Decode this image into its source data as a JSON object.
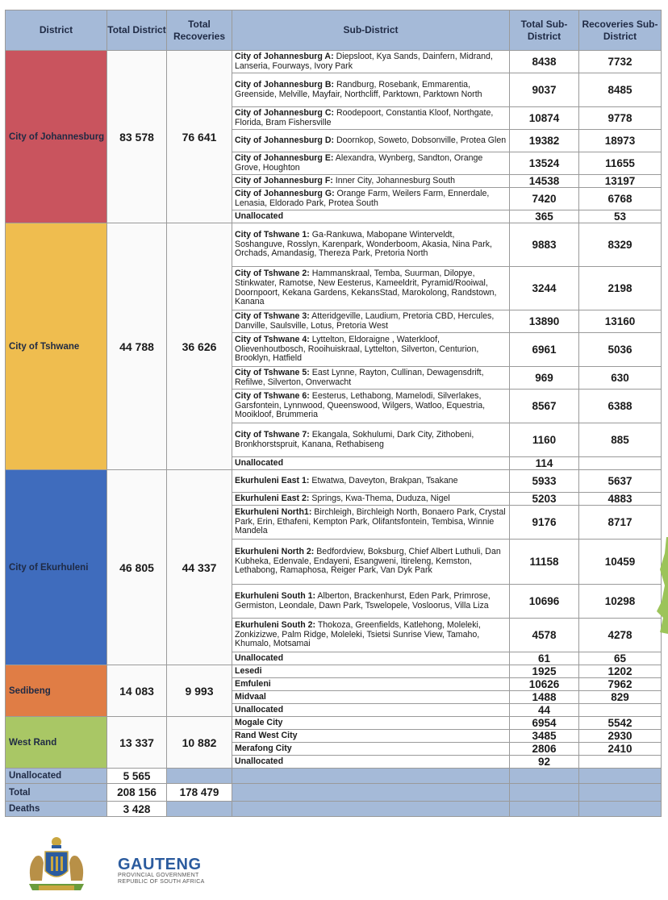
{
  "headers": {
    "district": "District",
    "total_district": "Total District",
    "total_recoveries": "Total Recoveries",
    "sub_district": "Sub-District",
    "total_sub": "Total Sub-District",
    "recoveries_sub": "Recoveries Sub-District"
  },
  "districts": [
    {
      "name": "City of Johannesburg",
      "color": "#c9545e",
      "total": "83 578",
      "recoveries": "76 641",
      "subs": [
        {
          "bold": "City of Johannesburg A:",
          "areas": " Diepsloot, Kya Sands, Dainfern, Midrand, Lanseria, Fourways, Ivory Park",
          "total": "8438",
          "rec": "7732",
          "h": 28
        },
        {
          "bold": "City of Johannesburg B:",
          "areas": " Randburg, Rosebank, Emmarentia, Greenside, Melville, Mayfair, Northcliff, Parktown, Parktown North",
          "total": "9037",
          "rec": "8485",
          "h": 42
        },
        {
          "bold": "City of Johannesburg C:",
          "areas": " Roodepoort, Constantia Kloof, Northgate, Florida, Bram Fishersville",
          "total": "10874",
          "rec": "9778",
          "h": 28
        },
        {
          "bold": "City of Johannesburg D:",
          "areas": " Doornkop, Soweto, Dobsonville, Protea Glen",
          "total": "19382",
          "rec": "18973",
          "h": 28
        },
        {
          "bold": "City of Johannesburg E:",
          "areas": " Alexandra, Wynberg, Sandton, Orange Grove, Houghton",
          "total": "13524",
          "rec": "11655",
          "h": 28
        },
        {
          "bold": "City of Johannesburg F:",
          "areas": " Inner City, Johannesburg South",
          "total": "14538",
          "rec": "13197",
          "h": 16
        },
        {
          "bold": "City of Johannesburg G:",
          "areas": " Orange Farm, Weilers Farm, Ennerdale, Lenasia, Eldorado Park, Protea South",
          "total": "7420",
          "rec": "6768",
          "h": 28
        },
        {
          "bold": "Unallocated",
          "areas": "",
          "total": "365",
          "rec": "53",
          "h": 16
        }
      ]
    },
    {
      "name": "City of Tshwane",
      "color": "#efbd4f",
      "total": "44 788",
      "recoveries": "36 626",
      "subs": [
        {
          "bold": "City of Tshwane 1:",
          "areas": " Ga-Rankuwa, Mabopane Winterveldt, Soshanguve, Rosslyn, Karenpark, Wonderboom, Akasia, Nina Park, Orchads, Amandasig, Thereza Park, Pretoria North",
          "total": "9883",
          "rec": "8329",
          "h": 54
        },
        {
          "bold": "City of Tshwane 2:",
          "areas": " Hammanskraal, Temba, Suurman, Dilopye, Stinkwater, Ramotse, New Eesterus, Kameeldrit, Pyramid/Rooiwal, Doornpoort, Kekana Gardens, KekansStad, Marokolong, Randstown, Kanana",
          "total": "3244",
          "rec": "2198",
          "h": 54
        },
        {
          "bold": "City of Tshwane 3:",
          "areas": " Atteridgeville, Laudium, Pretoria CBD, Hercules, Danville, Saulsville, Lotus, Pretoria West",
          "total": "13890",
          "rec": "13160",
          "h": 28
        },
        {
          "bold": "City of Tshwane 4:",
          "areas": " Lyttelton, Eldoraigne , Waterkloof, Olievenhoutbosch, Rooihuiskraal, Lyttelton, Silverton, Centurion, Brooklyn, Hatfield",
          "total": "6961",
          "rec": "5036",
          "h": 42
        },
        {
          "bold": "City of Tshwane 5:",
          "areas": " East Lynne, Rayton, Cullinan, Dewagensdrift, Refilwe, Silverton, Onverwacht",
          "total": "969",
          "rec": "630",
          "h": 28
        },
        {
          "bold": "City of Tshwane 6:",
          "areas": " Eesterus, Lethabong, Mamelodi, Silverlakes, Garsfontein, Lynnwood, Queenswood, Wilgers, Watloo, Equestria, Mooikloof, Brummeria",
          "total": "8567",
          "rec": "6388",
          "h": 42
        },
        {
          "bold": "City of Tshwane 7:",
          "areas": " Ekangala, Sokhulumi, Dark City, Zithobeni, Bronkhorstspruit, Kanana, Rethabiseng",
          "total": "1160",
          "rec": "885",
          "h": 42
        },
        {
          "bold": "Unallocated",
          "areas": "",
          "total": "114",
          "rec": "",
          "h": 16
        }
      ]
    },
    {
      "name": "City of Ekurhuleni",
      "color": "#3f6cbd",
      "total": "46 805",
      "recoveries": "44 337",
      "subs": [
        {
          "bold": "Ekurhuleni East 1:",
          "areas": " Etwatwa, Daveyton, Brakpan, Tsakane",
          "total": "5933",
          "rec": "5637",
          "h": 28
        },
        {
          "bold": "Ekurhuleni East 2:",
          "areas": " Springs, Kwa-Thema, Duduza, Nigel",
          "total": "5203",
          "rec": "4883",
          "h": 16
        },
        {
          "bold": "Ekurhuleni North1:",
          "areas": " Birchleigh, Birchleigh North, Bonaero Park, Crystal Park, Erin, Ethafeni, Kempton Park, Olifantsfontein, Tembisa, Winnie Mandela",
          "total": "9176",
          "rec": "8717",
          "h": 42
        },
        {
          "bold": "Ekurhuleni North 2:",
          "areas": " Bedfordview, Boksburg, Chief Albert Luthuli, Dan Kubheka, Edenvale, Endayeni, Esangweni, Itireleng, Kemston, Lethabong, Ramaphosa, Reiger Park, Van Dyk Park",
          "total": "11158",
          "rec": "10459",
          "h": 56
        },
        {
          "bold": "Ekurhuleni South 1:",
          "areas": " Alberton, Brackenhurst, Eden Park, Primrose, Germiston, Leondale, Dawn Park, Tswelopele, Vosloorus, Villa Liza",
          "total": "10696",
          "rec": "10298",
          "h": 42
        },
        {
          "bold": "Ekurhuleni South 2:",
          "areas": " Thokoza, Greenfields, Katlehong, Moleleki, Zonkizizwe, Palm Ridge, Moleleki, Tsietsi Sunrise View, Tamaho, Khumalo, Motsamai",
          "total": "4578",
          "rec": "4278",
          "h": 42
        },
        {
          "bold": "Unallocated",
          "areas": "",
          "total": "61",
          "rec": "65",
          "h": 16
        }
      ]
    },
    {
      "name": "Sedibeng",
      "color": "#e07d45",
      "total": "14 083",
      "recoveries": "9 993",
      "subs": [
        {
          "bold": "Lesedi",
          "areas": "",
          "total": "1925",
          "rec": "1202",
          "h": 16
        },
        {
          "bold": "Emfuleni",
          "areas": "",
          "total": "10626",
          "rec": "7962",
          "h": 16
        },
        {
          "bold": "Midvaal",
          "areas": "",
          "total": "1488",
          "rec": "829",
          "h": 16
        },
        {
          "bold": "Unallocated",
          "areas": "",
          "total": "44",
          "rec": "",
          "h": 16
        }
      ]
    },
    {
      "name": "West Rand",
      "color": "#a9c765",
      "total": "13 337",
      "recoveries": "10 882",
      "subs": [
        {
          "bold": "Mogale City",
          "areas": "",
          "total": "6954",
          "rec": "5542",
          "h": 16
        },
        {
          "bold": "Rand West City",
          "areas": "",
          "total": "3485",
          "rec": "2930",
          "h": 16
        },
        {
          "bold": "Merafong City",
          "areas": "",
          "total": "2806",
          "rec": "2410",
          "h": 16
        },
        {
          "bold": "Unallocated",
          "areas": "",
          "total": "92",
          "rec": "",
          "h": 16
        }
      ]
    }
  ],
  "footer": {
    "unallocated_label": "Unallocated",
    "unallocated_value": "5 565",
    "total_label": "Total",
    "total_value": "208 156",
    "total_recoveries": "178 479",
    "deaths_label": "Deaths",
    "deaths_value": "3 428"
  },
  "brand": {
    "name": "GAUTENG",
    "line1": "PROVINCIAL GOVERNMENT",
    "line2": "REPUBLIC OF SOUTH AFRICA"
  },
  "colors": {
    "header_bg": "#a5bad8",
    "brand_blue": "#2b5b9e"
  }
}
